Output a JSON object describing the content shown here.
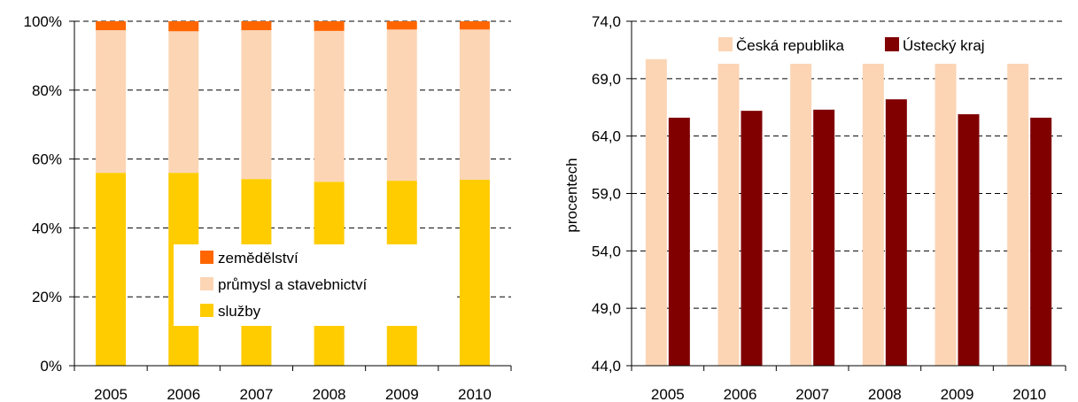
{
  "chart_data": [
    {
      "type": "bar",
      "stacked": true,
      "percent": true,
      "categories": [
        "2005",
        "2006",
        "2007",
        "2008",
        "2009",
        "2010"
      ],
      "series": [
        {
          "name": "služby",
          "color": "#FFCC00",
          "values": [
            56.0,
            56.0,
            54.2,
            53.4,
            53.7,
            54.0
          ]
        },
        {
          "name": "průmysl a stavebnictví",
          "color": "#FCD5B5",
          "values": [
            41.4,
            41.1,
            43.2,
            43.8,
            43.9,
            43.6
          ]
        },
        {
          "name": "zemědělství",
          "color": "#FF6600",
          "values": [
            2.6,
            2.9,
            2.6,
            2.8,
            2.4,
            2.4
          ]
        }
      ],
      "legend_order": [
        "zemědělství",
        "průmysl a stavebnictví",
        "služby"
      ],
      "yticks": [
        "0%",
        "20%",
        "40%",
        "60%",
        "80%",
        "100%"
      ],
      "ylim": [
        0,
        100
      ],
      "grid": true,
      "legend_position": "center-bottom"
    },
    {
      "type": "bar",
      "categories": [
        "2005",
        "2006",
        "2007",
        "2008",
        "2009",
        "2010"
      ],
      "series": [
        {
          "name": "Česká republika",
          "color": "#FCD5B5",
          "values": [
            70.7,
            70.3,
            70.3,
            70.3,
            70.3,
            70.3
          ]
        },
        {
          "name": "Ústecký kraj",
          "color": "#800000",
          "values": [
            65.6,
            66.2,
            66.3,
            67.2,
            65.9,
            65.6
          ]
        }
      ],
      "ylabel": "procentech",
      "yticks": [
        "44,0",
        "49,0",
        "54,0",
        "59,0",
        "64,0",
        "69,0",
        "74,0"
      ],
      "ylim": [
        44,
        74
      ],
      "grid": true,
      "legend_position": "top"
    }
  ]
}
